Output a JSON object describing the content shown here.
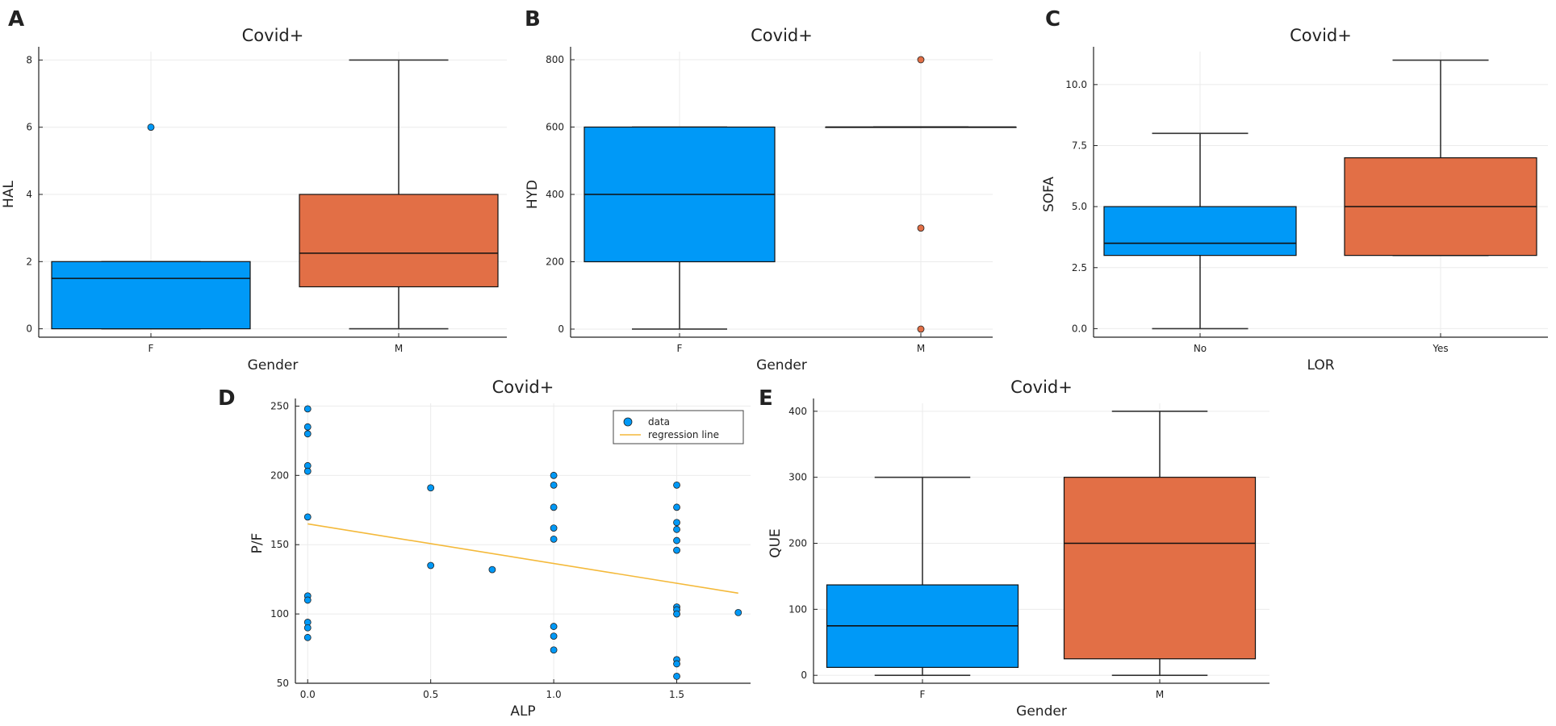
{
  "colors": {
    "blue": "#0099f7",
    "orange": "#e26f46",
    "regression": "#f4b93a"
  },
  "chart_data": [
    {
      "id": "A",
      "letter": "A",
      "type": "boxplot",
      "title": "Covid+",
      "xlabel": "Gender",
      "ylabel": "HAL",
      "categories": [
        "F",
        "M"
      ],
      "ylim": [
        -0.25,
        8.25
      ],
      "yticks": [
        0,
        2,
        4,
        6,
        8
      ],
      "boxes": [
        {
          "category": "F",
          "whislo": 0,
          "q1": 0,
          "median": 1.5,
          "q3": 2,
          "whishi": 2,
          "outliers": [
            6
          ],
          "color": "blue"
        },
        {
          "category": "M",
          "whislo": 0,
          "q1": 1.25,
          "median": 2.25,
          "q3": 4,
          "whishi": 8,
          "outliers": [],
          "color": "orange"
        }
      ]
    },
    {
      "id": "B",
      "letter": "B",
      "type": "boxplot",
      "title": "Covid+",
      "xlabel": "Gender",
      "ylabel": "HYD",
      "categories": [
        "F",
        "M"
      ],
      "ylim": [
        -24,
        824
      ],
      "yticks": [
        0,
        200,
        400,
        600,
        800
      ],
      "boxes": [
        {
          "category": "F",
          "whislo": 0,
          "q1": 200,
          "median": 400,
          "q3": 600,
          "whishi": 600,
          "outliers": [],
          "color": "blue"
        },
        {
          "category": "M",
          "whislo": 600,
          "q1": 600,
          "median": 600,
          "q3": 600,
          "whishi": 600,
          "outliers": [
            800,
            300,
            0
          ],
          "color": "orange"
        }
      ]
    },
    {
      "id": "C",
      "letter": "C",
      "type": "boxplot",
      "title": "Covid+",
      "xlabel": "LOR",
      "ylabel": "SOFA",
      "categories": [
        "No",
        "Yes"
      ],
      "ylim": [
        -0.35,
        11.35
      ],
      "yticks": [
        "0.0",
        "2.5",
        "5.0",
        "7.5",
        "10.0"
      ],
      "boxes": [
        {
          "category": "No",
          "whislo": 0,
          "q1": 3,
          "median": 3.5,
          "q3": 5,
          "whishi": 8,
          "outliers": [],
          "color": "blue"
        },
        {
          "category": "Yes",
          "whislo": 3,
          "q1": 3,
          "median": 5,
          "q3": 7,
          "whishi": 11,
          "outliers": [],
          "color": "orange"
        }
      ]
    },
    {
      "id": "D",
      "letter": "D",
      "type": "scatter",
      "title": "Covid+",
      "xlabel": "ALP",
      "ylabel": "P/F",
      "xlim": [
        -0.05,
        1.8
      ],
      "ylim": [
        50,
        252
      ],
      "xticks": [
        "0.0",
        "0.5",
        "1.0",
        "1.5"
      ],
      "yticks": [
        50,
        100,
        150,
        200,
        250
      ],
      "points": [
        [
          0,
          248
        ],
        [
          0,
          235
        ],
        [
          0,
          230
        ],
        [
          0,
          207
        ],
        [
          0,
          203
        ],
        [
          0,
          170
        ],
        [
          0,
          113
        ],
        [
          0,
          110
        ],
        [
          0,
          94
        ],
        [
          0,
          90
        ],
        [
          0,
          83
        ],
        [
          0.5,
          191
        ],
        [
          0.5,
          135
        ],
        [
          0.75,
          132
        ],
        [
          1.0,
          200
        ],
        [
          1.0,
          193
        ],
        [
          1.0,
          177
        ],
        [
          1.0,
          162
        ],
        [
          1.0,
          154
        ],
        [
          1.0,
          91
        ],
        [
          1.0,
          84
        ],
        [
          1.0,
          74
        ],
        [
          1.5,
          193
        ],
        [
          1.5,
          177
        ],
        [
          1.5,
          166
        ],
        [
          1.5,
          161
        ],
        [
          1.5,
          153
        ],
        [
          1.5,
          146
        ],
        [
          1.5,
          105
        ],
        [
          1.5,
          103
        ],
        [
          1.5,
          100
        ],
        [
          1.5,
          67
        ],
        [
          1.5,
          64
        ],
        [
          1.5,
          55
        ],
        [
          1.75,
          101
        ]
      ],
      "regression": {
        "x": [
          0,
          1.75
        ],
        "y": [
          165,
          115
        ]
      },
      "legend": {
        "position": "top-right",
        "entries": [
          "data",
          "regression line"
        ]
      }
    },
    {
      "id": "E",
      "letter": "E",
      "type": "boxplot",
      "title": "Covid+",
      "xlabel": "Gender",
      "ylabel": "QUE",
      "categories": [
        "F",
        "M"
      ],
      "ylim": [
        -12,
        412
      ],
      "yticks": [
        0,
        100,
        200,
        300,
        400
      ],
      "boxes": [
        {
          "category": "F",
          "whislo": 0,
          "q1": 12,
          "median": 75,
          "q3": 137,
          "whishi": 300,
          "outliers": [],
          "color": "blue"
        },
        {
          "category": "M",
          "whislo": 0,
          "q1": 25,
          "median": 200,
          "q3": 300,
          "whishi": 400,
          "outliers": [],
          "color": "orange"
        }
      ]
    }
  ]
}
